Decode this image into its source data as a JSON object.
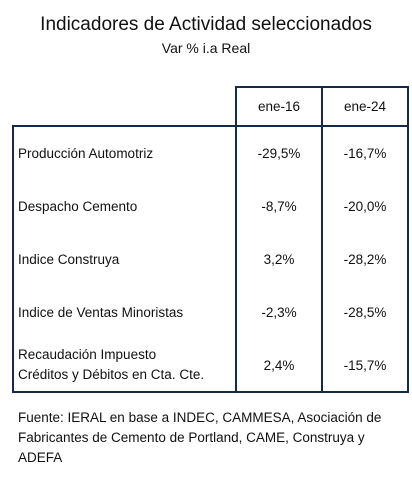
{
  "title": "Indicadores de Actividad seleccionados",
  "subtitle": "Var % i.a Real",
  "columns": [
    "ene-16",
    "ene-24"
  ],
  "rows": [
    {
      "label": "Producción Automotriz",
      "v1": "-29,5%",
      "v2": "-16,7%"
    },
    {
      "label": "Despacho Cemento",
      "v1": "-8,7%",
      "v2": "-20,0%"
    },
    {
      "label": "Indice Construya",
      "v1": "3,2%",
      "v2": "-28,2%"
    },
    {
      "label": "Indice de Ventas Minoristas",
      "v1": "-2,3%",
      "v2": "-28,5%"
    },
    {
      "label_line1": "Recaudación Impuesto",
      "label_line2": "Créditos y Débitos en Cta. Cte.",
      "v1": "2,4%",
      "v2": "-15,7%"
    }
  ],
  "source": "Fuente: IERAL en base a INDEC, CAMMESA, Asociación de Fabricantes de Cemento de Portland, CAME, Construya y ADEFA"
}
